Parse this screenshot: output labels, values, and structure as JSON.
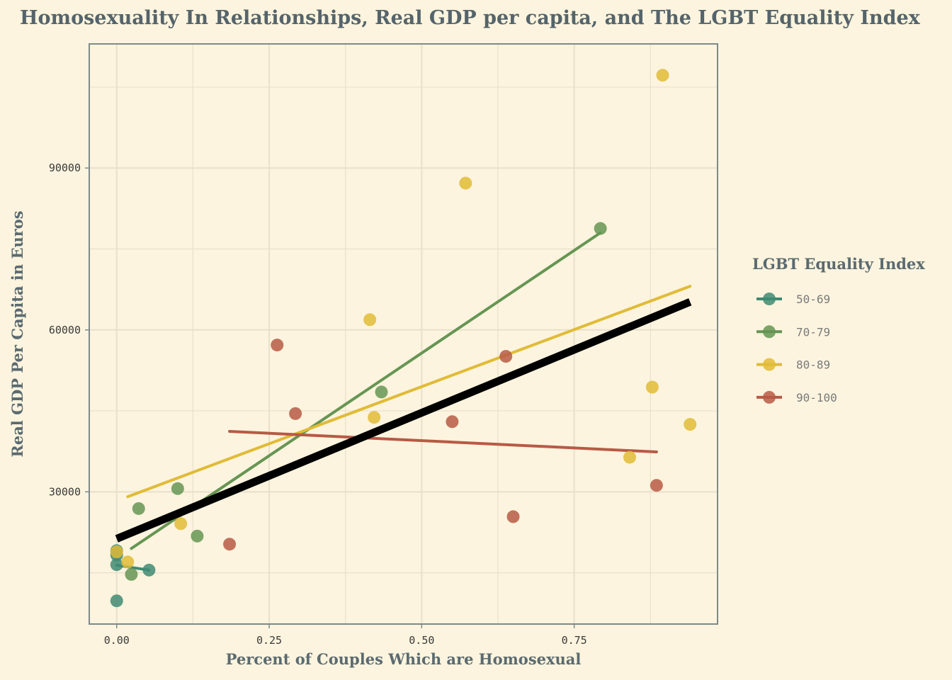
{
  "chart_data": {
    "type": "scatter",
    "title": "Homosexuality In Relationships, Real GDP per capita, and The LGBT Equality Index",
    "xlabel": "Percent of Couples Which are Homosexual",
    "ylabel": "Real GDP Per Capita in Euros",
    "xlim": [
      -0.045,
      0.985
    ],
    "ylim": [
      5500,
      113000
    ],
    "x_ticks": [
      0.0,
      0.25,
      0.5,
      0.75
    ],
    "x_tick_labels": [
      "0.00",
      "0.25",
      "0.50",
      "0.75"
    ],
    "y_ticks": [
      30000,
      60000,
      90000
    ],
    "y_tick_labels": [
      "30000",
      "60000",
      "90000"
    ],
    "grid": true,
    "legend": {
      "title": "LGBT Equality Index",
      "position": "right"
    },
    "series": [
      {
        "name": "50-69",
        "color": "#3f8a73",
        "points": [
          [
            0.0,
            19100
          ],
          [
            0.0,
            18300
          ],
          [
            0.0,
            16500
          ],
          [
            0.0,
            9800
          ],
          [
            0.053,
            15500
          ]
        ],
        "trend": [
          [
            0.0,
            16400
          ],
          [
            0.053,
            15500
          ]
        ]
      },
      {
        "name": "70-79",
        "color": "#669553",
        "points": [
          [
            0.1,
            30600
          ],
          [
            0.036,
            26900
          ],
          [
            0.132,
            21800
          ],
          [
            0.024,
            14700
          ],
          [
            0.434,
            48500
          ],
          [
            0.793,
            78800
          ]
        ],
        "trend": [
          [
            0.024,
            19500
          ],
          [
            0.793,
            78000
          ]
        ]
      },
      {
        "name": "80-89",
        "color": "#e0bb36",
        "points": [
          [
            0.0,
            18900
          ],
          [
            0.018,
            17000
          ],
          [
            0.105,
            24100
          ],
          [
            0.415,
            61900
          ],
          [
            0.422,
            43800
          ],
          [
            0.572,
            87200
          ],
          [
            0.841,
            36400
          ],
          [
            0.878,
            49400
          ],
          [
            0.895,
            107200
          ],
          [
            0.94,
            42500
          ]
        ],
        "trend": [
          [
            0.018,
            29100
          ],
          [
            0.94,
            68100
          ]
        ]
      },
      {
        "name": "90-100",
        "color": "#b75a45",
        "points": [
          [
            0.185,
            20300
          ],
          [
            0.263,
            57200
          ],
          [
            0.293,
            44500
          ],
          [
            0.55,
            43000
          ],
          [
            0.638,
            55100
          ],
          [
            0.65,
            25400
          ],
          [
            0.885,
            31200
          ]
        ],
        "trend": [
          [
            0.185,
            41200
          ],
          [
            0.885,
            37400
          ]
        ]
      }
    ],
    "overall_trend": {
      "color": "#000000",
      "line": [
        [
          0.0,
          21300
        ],
        [
          0.94,
          65200
        ]
      ]
    }
  }
}
